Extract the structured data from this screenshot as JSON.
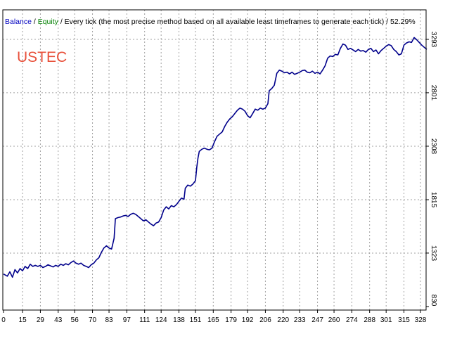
{
  "header": {
    "balance_label": "Balance",
    "separator": " / ",
    "equity_label": "Equity",
    "description": " / Every tick (the most precise method based on all available least timeframes to generate each tick) / 52.29%"
  },
  "symbol_label": "USTEC",
  "colors": {
    "balance": "#0000c0",
    "equity": "#008000",
    "line": "#00008b",
    "symbol": "#e8503a",
    "grid": "#a0a0a0",
    "frame": "#000000"
  },
  "chart_data": {
    "type": "line",
    "title": "",
    "xlabel": "",
    "ylabel": "",
    "xlim": [
      0,
      335
    ],
    "ylim": [
      830,
      3350
    ],
    "x_ticks": [
      0,
      15,
      29,
      43,
      56,
      70,
      83,
      97,
      111,
      124,
      138,
      151,
      165,
      179,
      192,
      206,
      220,
      233,
      247,
      260,
      274,
      288,
      301,
      315,
      328
    ],
    "y_ticks": [
      830,
      1323,
      1815,
      2308,
      2801,
      3293
    ],
    "grid": true,
    "legend": "top-left",
    "series": [
      {
        "name": "Balance",
        "points": [
          [
            0,
            1130
          ],
          [
            3,
            1110
          ],
          [
            5,
            1150
          ],
          [
            7,
            1100
          ],
          [
            9,
            1170
          ],
          [
            11,
            1140
          ],
          [
            13,
            1180
          ],
          [
            15,
            1160
          ],
          [
            17,
            1200
          ],
          [
            19,
            1180
          ],
          [
            21,
            1220
          ],
          [
            23,
            1200
          ],
          [
            25,
            1210
          ],
          [
            27,
            1200
          ],
          [
            29,
            1210
          ],
          [
            31,
            1190
          ],
          [
            33,
            1200
          ],
          [
            35,
            1215
          ],
          [
            37,
            1205
          ],
          [
            39,
            1195
          ],
          [
            41,
            1210
          ],
          [
            43,
            1200
          ],
          [
            45,
            1220
          ],
          [
            47,
            1210
          ],
          [
            49,
            1225
          ],
          [
            51,
            1215
          ],
          [
            53,
            1235
          ],
          [
            55,
            1250
          ],
          [
            57,
            1230
          ],
          [
            59,
            1220
          ],
          [
            61,
            1230
          ],
          [
            63,
            1210
          ],
          [
            65,
            1200
          ],
          [
            67,
            1190
          ],
          [
            69,
            1215
          ],
          [
            71,
            1230
          ],
          [
            73,
            1260
          ],
          [
            75,
            1280
          ],
          [
            77,
            1330
          ],
          [
            79,
            1370
          ],
          [
            81,
            1390
          ],
          [
            83,
            1370
          ],
          [
            85,
            1360
          ],
          [
            87,
            1460
          ],
          [
            88,
            1640
          ],
          [
            90,
            1650
          ],
          [
            92,
            1655
          ],
          [
            94,
            1665
          ],
          [
            96,
            1670
          ],
          [
            98,
            1660
          ],
          [
            100,
            1680
          ],
          [
            102,
            1690
          ],
          [
            104,
            1680
          ],
          [
            106,
            1660
          ],
          [
            108,
            1640
          ],
          [
            110,
            1620
          ],
          [
            112,
            1630
          ],
          [
            114,
            1610
          ],
          [
            116,
            1590
          ],
          [
            118,
            1575
          ],
          [
            120,
            1600
          ],
          [
            122,
            1610
          ],
          [
            124,
            1650
          ],
          [
            126,
            1720
          ],
          [
            128,
            1750
          ],
          [
            130,
            1730
          ],
          [
            132,
            1760
          ],
          [
            134,
            1750
          ],
          [
            136,
            1770
          ],
          [
            138,
            1800
          ],
          [
            140,
            1830
          ],
          [
            142,
            1820
          ],
          [
            143,
            1920
          ],
          [
            145,
            1950
          ],
          [
            147,
            1940
          ],
          [
            149,
            1960
          ],
          [
            151,
            1990
          ],
          [
            152,
            2110
          ],
          [
            153,
            2200
          ],
          [
            154,
            2260
          ],
          [
            156,
            2280
          ],
          [
            158,
            2290
          ],
          [
            160,
            2280
          ],
          [
            162,
            2275
          ],
          [
            164,
            2290
          ],
          [
            166,
            2350
          ],
          [
            168,
            2400
          ],
          [
            170,
            2420
          ],
          [
            172,
            2440
          ],
          [
            174,
            2490
          ],
          [
            176,
            2530
          ],
          [
            178,
            2560
          ],
          [
            180,
            2580
          ],
          [
            182,
            2610
          ],
          [
            184,
            2640
          ],
          [
            186,
            2660
          ],
          [
            188,
            2650
          ],
          [
            190,
            2630
          ],
          [
            192,
            2590
          ],
          [
            194,
            2570
          ],
          [
            196,
            2610
          ],
          [
            198,
            2650
          ],
          [
            200,
            2640
          ],
          [
            202,
            2660
          ],
          [
            204,
            2650
          ],
          [
            206,
            2660
          ],
          [
            208,
            2700
          ],
          [
            209,
            2820
          ],
          [
            211,
            2840
          ],
          [
            213,
            2870
          ],
          [
            215,
            2980
          ],
          [
            217,
            3010
          ],
          [
            219,
            3000
          ],
          [
            221,
            2985
          ],
          [
            223,
            2990
          ],
          [
            225,
            2975
          ],
          [
            227,
            2990
          ],
          [
            229,
            2970
          ],
          [
            231,
            2980
          ],
          [
            233,
            2990
          ],
          [
            235,
            3005
          ],
          [
            237,
            3010
          ],
          [
            239,
            2990
          ],
          [
            241,
            2985
          ],
          [
            243,
            3000
          ],
          [
            245,
            2980
          ],
          [
            247,
            2990
          ],
          [
            249,
            2975
          ],
          [
            251,
            3010
          ],
          [
            253,
            3050
          ],
          [
            255,
            3120
          ],
          [
            257,
            3140
          ],
          [
            259,
            3135
          ],
          [
            261,
            3155
          ],
          [
            263,
            3150
          ],
          [
            265,
            3210
          ],
          [
            267,
            3250
          ],
          [
            269,
            3240
          ],
          [
            271,
            3200
          ],
          [
            273,
            3210
          ],
          [
            275,
            3195
          ],
          [
            277,
            3180
          ],
          [
            279,
            3200
          ],
          [
            281,
            3185
          ],
          [
            283,
            3190
          ],
          [
            285,
            3175
          ],
          [
            287,
            3200
          ],
          [
            289,
            3210
          ],
          [
            291,
            3180
          ],
          [
            293,
            3195
          ],
          [
            295,
            3160
          ],
          [
            297,
            3190
          ],
          [
            299,
            3210
          ],
          [
            301,
            3230
          ],
          [
            303,
            3245
          ],
          [
            305,
            3235
          ],
          [
            307,
            3200
          ],
          [
            309,
            3180
          ],
          [
            311,
            3150
          ],
          [
            313,
            3160
          ],
          [
            315,
            3240
          ],
          [
            317,
            3260
          ],
          [
            319,
            3270
          ],
          [
            321,
            3265
          ],
          [
            323,
            3310
          ],
          [
            325,
            3290
          ],
          [
            327,
            3265
          ],
          [
            329,
            3240
          ],
          [
            331,
            3220
          ],
          [
            333,
            3200
          ]
        ]
      }
    ]
  }
}
